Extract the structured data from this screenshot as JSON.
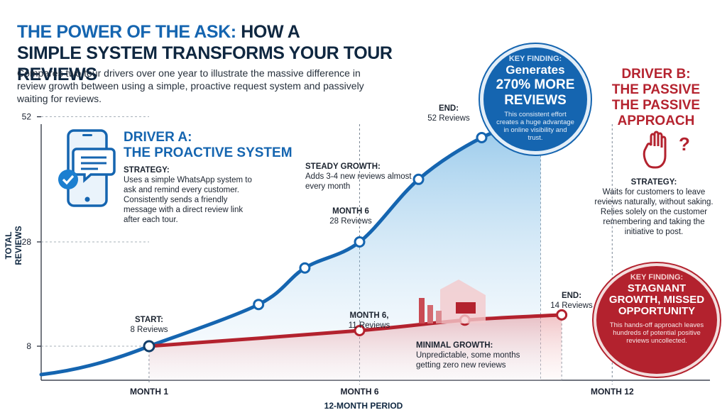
{
  "title_line1_accent": "THE POWER OF THE ASK:",
  "title_line1_rest": "HOW A",
  "title_line2": "SIMPLE SYSTEM TRANSFORMS YOUR TOUR REVIEWS",
  "subtitle": "Compares two tour drivers over one year to illustrate the massive difference in review growth between using a simple, proactive request system and passively waiting for reviews.",
  "driver_a": {
    "title_line1": "DRIVER A:",
    "title_line2": "THE PROACTIVE SYSTEM",
    "strategy_label": "STRATEGY:",
    "strategy_text": "Uses a simple WhatsApp system to ask and remind every customer. Consistently sends a friendly message with a direct review link after each tour.",
    "icon": "smartphone-chat-check-icon"
  },
  "driver_b": {
    "title_line1": "DRIVER B:",
    "title_line2": "THE PASSIVE",
    "title_line3": "THE PASSIVE",
    "title_line4": "APPROACH",
    "strategy_label": "STRATEGY:",
    "strategy_text": "Waits for customers to leave reviews naturally, without saking. Relies solely on the customer remembering and taking the initiative to post.",
    "icon": "raised-hand-question-icon"
  },
  "key_finding_a": {
    "label": "KEY FINDING:",
    "line1": "Generates",
    "line2": "270% MORE",
    "line3": "REVIEWS",
    "text": "This consistent effort creates a huge advantage in online visibility and trust."
  },
  "key_finding_b": {
    "label": "KEY FINDING:",
    "headline": "STAGNANT GROWTH, MISSED OPPORTUNITY",
    "text": "This hands-off approach leaves hundreds of potential positive reviews uncollected."
  },
  "annotations": {
    "start_label": "START:",
    "start_value": "8 Reviews",
    "month6_a_label": "MONTH 6",
    "month6_a_value": "28 Reviews",
    "steady_label": "STEADY GROWTH:",
    "steady_text": "Adds 3-4 new reviews almost every month",
    "end_a_label": "END:",
    "end_a_value": "52 Reviews",
    "month6_b_label": "MONTH 6,",
    "month6_b_value": "11 Reviews",
    "minimal_label": "MINIMAL GROWTH:",
    "minimal_text": "Unpredictable, some months getting zero new reviews",
    "end_b_label": "END:",
    "end_b_value": "14 Reviews"
  },
  "chart_data": {
    "type": "line",
    "x": [
      1,
      6,
      12
    ],
    "x_tick_labels": [
      "MONTH 1",
      "MONTH 6",
      "MONTH 12"
    ],
    "xlabel": "12-MONTH PERIOD",
    "ylabel": "TOTAL REVIEWS",
    "y_ticks": [
      8,
      28,
      52
    ],
    "series": [
      {
        "name": "Driver A",
        "color": "#1565b0",
        "points": [
          [
            1,
            8
          ],
          [
            3.6,
            16
          ],
          [
            4.7,
            23
          ],
          [
            6,
            28
          ],
          [
            7.4,
            40
          ],
          [
            8.9,
            48
          ],
          [
            10.3,
            52
          ]
        ]
      },
      {
        "name": "Driver B",
        "color": "#b3222e",
        "points": [
          [
            1,
            8
          ],
          [
            6,
            11
          ],
          [
            8.5,
            13
          ],
          [
            10.8,
            14
          ]
        ]
      }
    ],
    "colors": {
      "driver_a": "#1565b0",
      "driver_b": "#b3222e"
    }
  }
}
